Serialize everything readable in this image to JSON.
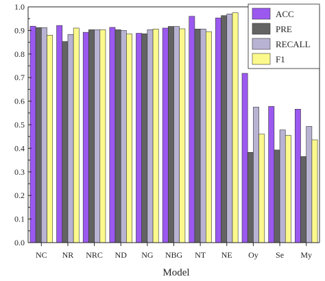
{
  "chart_data": {
    "type": "bar",
    "title": "",
    "xlabel": "Model",
    "ylabel": "",
    "ylim": [
      0.0,
      1.0
    ],
    "yticks": [
      "0.0",
      "0.1",
      "0.2",
      "0.3",
      "0.4",
      "0.5",
      "0.6",
      "0.7",
      "0.8",
      "0.9",
      "1.0"
    ],
    "grid": false,
    "legend_position": "top-right",
    "categories": [
      "NC",
      "NR",
      "NRC",
      "ND",
      "NG",
      "NBG",
      "NT",
      "NE",
      "Oy",
      "Se",
      "My"
    ],
    "series": [
      {
        "name": "ACC",
        "color": "#9b59f0",
        "values": [
          0.918,
          0.921,
          0.892,
          0.913,
          0.888,
          0.91,
          0.96,
          0.953,
          0.718,
          0.578,
          0.566
        ]
      },
      {
        "name": "PRE",
        "color": "#636363",
        "values": [
          0.912,
          0.853,
          0.903,
          0.903,
          0.886,
          0.917,
          0.906,
          0.963,
          0.383,
          0.393,
          0.365
        ]
      },
      {
        "name": "RECALL",
        "color": "#b9b3d3",
        "values": [
          0.912,
          0.883,
          0.903,
          0.9,
          0.903,
          0.917,
          0.906,
          0.97,
          0.575,
          0.478,
          0.493
        ]
      },
      {
        "name": "F1",
        "color": "#fbf98c",
        "values": [
          0.88,
          0.91,
          0.903,
          0.885,
          0.906,
          0.907,
          0.895,
          0.975,
          0.46,
          0.455,
          0.436
        ]
      }
    ]
  }
}
